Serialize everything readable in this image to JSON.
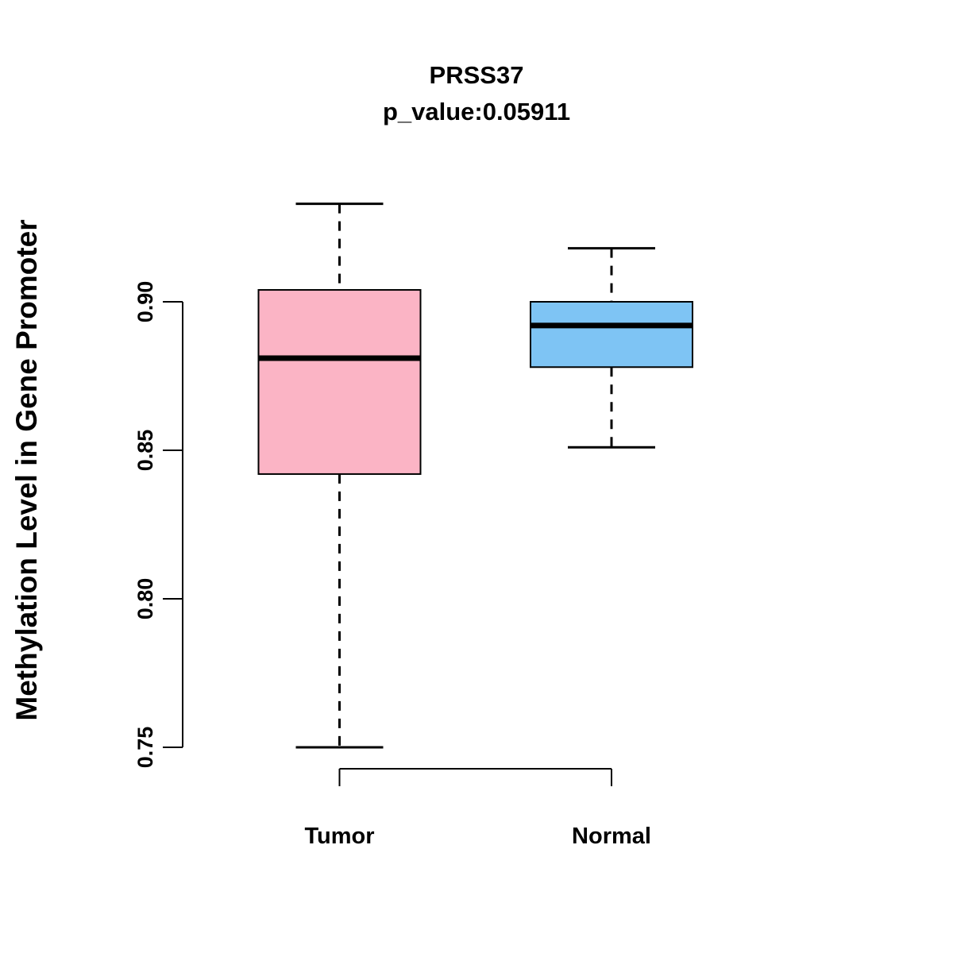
{
  "chart_data": {
    "type": "boxplot",
    "title": "PRSS37",
    "subtitle": "p_value:0.05911",
    "ylabel": "Methylation Level in Gene Promoter",
    "xlabel": "",
    "yticks": [
      0.75,
      0.8,
      0.85,
      0.9
    ],
    "ylim": [
      0.74,
      0.94
    ],
    "grid": false,
    "legend": "none",
    "groups": [
      {
        "label": "Tumor",
        "color": "#FBB4C5",
        "whisker_low": 0.75,
        "q1": 0.842,
        "median": 0.881,
        "q3": 0.904,
        "whisker_high": 0.933
      },
      {
        "label": "Normal",
        "color": "#7EC4F4",
        "whisker_low": 0.851,
        "q1": 0.878,
        "median": 0.892,
        "q3": 0.9,
        "whisker_high": 0.918
      }
    ]
  }
}
